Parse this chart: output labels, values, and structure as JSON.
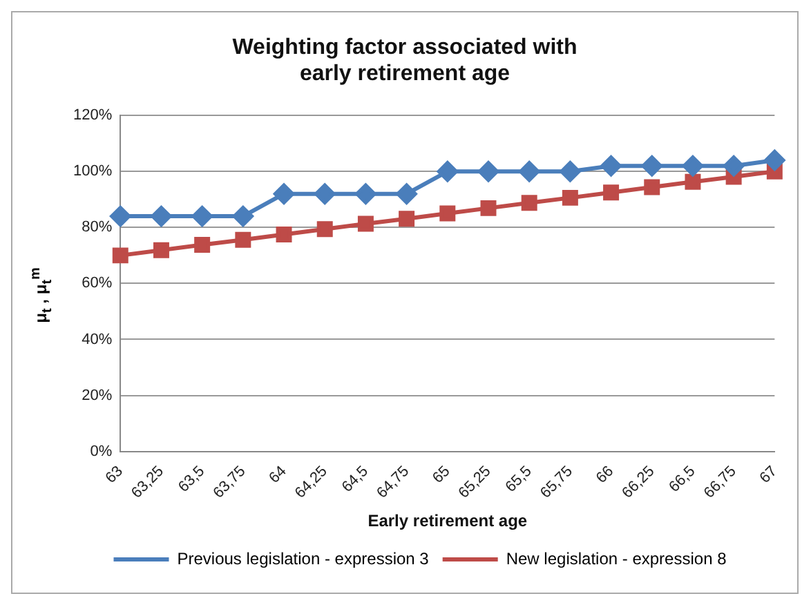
{
  "chart_data": {
    "type": "line",
    "title": "Weighting factor associated with early retirement age",
    "xlabel": "Early retirement age",
    "ylabel": "μ$_{t}$ , μ$_{t}$$^{m}$",
    "categories": [
      "63",
      "63,25",
      "63,5",
      "63,75",
      "64",
      "64,25",
      "64,5",
      "64,75",
      "65",
      "65,25",
      "65,5",
      "65,75",
      "66",
      "66,25",
      "66,5",
      "66,75",
      "67"
    ],
    "series": [
      {
        "name": "Previous legislation - expression 3",
        "color": "#4a7ebb",
        "marker": "diamond",
        "values": [
          84,
          84,
          84,
          84,
          92,
          92,
          92,
          92,
          100,
          100,
          100,
          100,
          102,
          102,
          102,
          102,
          104
        ]
      },
      {
        "name": "New legislation - expression 8",
        "color": "#be4b48",
        "marker": "square",
        "values": [
          70,
          71.9,
          73.8,
          75.6,
          77.5,
          79.4,
          81.3,
          83.1,
          85,
          86.9,
          88.8,
          90.6,
          92.5,
          94.4,
          96.3,
          98.1,
          100
        ]
      }
    ],
    "ylim": [
      0,
      120
    ],
    "yticks": [
      {
        "value": 0,
        "label": "0%"
      },
      {
        "value": 20,
        "label": "20%"
      },
      {
        "value": 40,
        "label": "40%"
      },
      {
        "value": 60,
        "label": "60%"
      },
      {
        "value": 80,
        "label": "80%"
      },
      {
        "value": 100,
        "label": "100%"
      },
      {
        "value": 120,
        "label": "120%"
      }
    ],
    "grid": "y",
    "legend": "bottom"
  }
}
